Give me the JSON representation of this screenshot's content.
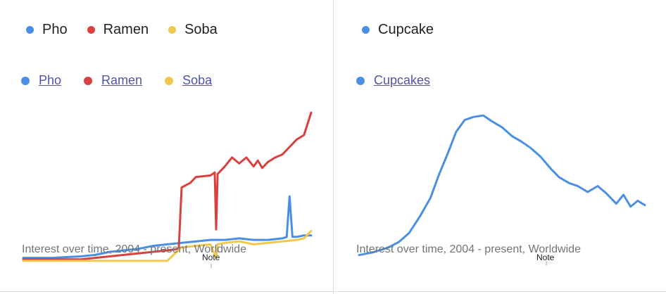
{
  "legend_top_left": [
    "Pho",
    "Ramen",
    "Soba"
  ],
  "legend_top_right": [
    "Cupcake"
  ],
  "colors": {
    "Pho": "#4a90e2",
    "Ramen": "#d9413f",
    "Soba": "#f1c84b",
    "Cupcake": "#4a90e2"
  },
  "chart_data": [
    {
      "type": "line",
      "x_unit": "year",
      "xlim": [
        2004,
        2024
      ],
      "ylim": [
        0,
        100
      ],
      "caption": "Interest over time, 2004 - present, Worldwide",
      "note": "Note",
      "legend": [
        "Pho",
        "Ramen",
        "Soba"
      ],
      "series": [
        {
          "name": "Pho",
          "color": "#4a90e2",
          "x": [
            2004,
            2006,
            2008,
            2009,
            2010,
            2011,
            2012,
            2013,
            2014,
            2015,
            2016,
            2017,
            2018,
            2019,
            2020,
            2021,
            2022,
            2022.3,
            2022.5,
            2022.7,
            2023,
            2023.5,
            2024
          ],
          "y": [
            3,
            3,
            4,
            5,
            7,
            8,
            9,
            11,
            12,
            13,
            14,
            15,
            15,
            16,
            15,
            15,
            16,
            17,
            44,
            17,
            17,
            18,
            18
          ]
        },
        {
          "name": "Ramen",
          "color": "#d9413f",
          "x": [
            2004,
            2006,
            2008,
            2009,
            2010,
            2011,
            2012,
            2013,
            2014,
            2014.8,
            2015,
            2015.6,
            2016,
            2017,
            2017.3,
            2017.4,
            2017.5,
            2018,
            2018.5,
            2019,
            2019.5,
            2020,
            2020.3,
            2020.6,
            2021,
            2021.5,
            2022,
            2022.5,
            2023,
            2023.5,
            2024
          ],
          "y": [
            2,
            2,
            2,
            3,
            4,
            5,
            6,
            7,
            8,
            9,
            50,
            53,
            57,
            58,
            60,
            22,
            59,
            64,
            70,
            66,
            70,
            64,
            68,
            63,
            67,
            70,
            72,
            77,
            82,
            85,
            100
          ]
        },
        {
          "name": "Soba",
          "color": "#f1c84b",
          "x": [
            2004,
            2006,
            2008,
            2010,
            2012,
            2014,
            2015,
            2016,
            2017,
            2017.4,
            2017.5,
            2018,
            2019,
            2020,
            2021,
            2022,
            2023,
            2023.5,
            2024
          ],
          "y": [
            1,
            1,
            1,
            1,
            1,
            1,
            10,
            11,
            12,
            3,
            12,
            13,
            14,
            12,
            13,
            14,
            15,
            16,
            21
          ]
        }
      ]
    },
    {
      "type": "line",
      "x_unit": "year",
      "xlim": [
        2004,
        2024
      ],
      "ylim": [
        0,
        100
      ],
      "caption": "Interest over time, 2004 - present, Worldwide",
      "note": "Note",
      "legend": [
        "Cupcakes"
      ],
      "series": [
        {
          "name": "Cupcakes",
          "color": "#4a90e2",
          "x": [
            2004,
            2005,
            2006,
            2006.8,
            2007.5,
            2008.3,
            2009,
            2009.6,
            2010.2,
            2010.8,
            2011.4,
            2012,
            2012.7,
            2013.3,
            2014,
            2014.7,
            2015.4,
            2016,
            2016.7,
            2017.4,
            2018,
            2018.7,
            2019.3,
            2020,
            2020.7,
            2021.3,
            2022,
            2022.5,
            2023,
            2023.5,
            2024
          ],
          "y": [
            3,
            5,
            8,
            12,
            18,
            30,
            42,
            58,
            72,
            87,
            95,
            97,
            98,
            94,
            90,
            84,
            80,
            76,
            70,
            62,
            56,
            52,
            50,
            46,
            50,
            45,
            38,
            44,
            36,
            40,
            37
          ]
        }
      ]
    }
  ]
}
